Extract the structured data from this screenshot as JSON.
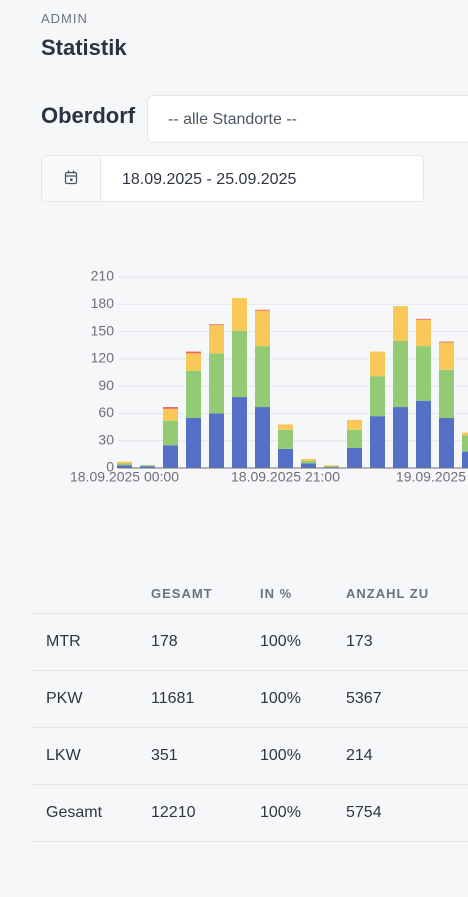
{
  "header": {
    "section": "ADMIN",
    "title": "Statistik"
  },
  "location": {
    "label": "Oberdorf",
    "select": "-- alle Standorte --"
  },
  "date_range": "18.09.2025 - 25.09.2025",
  "chart_data": {
    "type": "stacked_bar",
    "categories": [
      "18.09.2025 00:00",
      null,
      null,
      null,
      null,
      null,
      null,
      "18.09.2025 21:00",
      null,
      null,
      null,
      null,
      null,
      null,
      "19.09.2025",
      null
    ],
    "series": [
      {
        "color": "#5470c6",
        "values": [
          3,
          2,
          25,
          55,
          60,
          78,
          67,
          21,
          5,
          1,
          22,
          57,
          67,
          74,
          55,
          18
        ]
      },
      {
        "color": "#91cc75",
        "values": [
          2,
          1,
          27,
          52,
          66,
          73,
          67,
          21,
          3,
          1,
          20,
          44,
          73,
          60,
          53,
          18
        ]
      },
      {
        "color": "#fac858",
        "values": [
          2,
          0,
          13,
          19,
          31,
          36,
          39,
          6,
          2,
          1,
          11,
          27,
          38,
          29,
          30,
          3
        ]
      },
      {
        "color": "#ee6666",
        "values": [
          0,
          0,
          2,
          2,
          1,
          0,
          1,
          0,
          0,
          0,
          0,
          0,
          0,
          1,
          1,
          0
        ]
      }
    ],
    "ylim": [
      0,
      210
    ],
    "yticks": [
      0,
      30,
      60,
      90,
      120,
      150,
      180,
      210
    ],
    "grid": true
  },
  "table": {
    "columns": [
      "GESAMT",
      "IN %",
      "ANZAHL ZU"
    ],
    "rows": [
      [
        "MTR",
        "178",
        "100%",
        "173"
      ],
      [
        "PKW",
        "11681",
        "100%",
        "5367"
      ],
      [
        "LKW",
        "351",
        "100%",
        "214"
      ],
      [
        "Gesamt",
        "12210",
        "100%",
        "5754"
      ]
    ]
  }
}
